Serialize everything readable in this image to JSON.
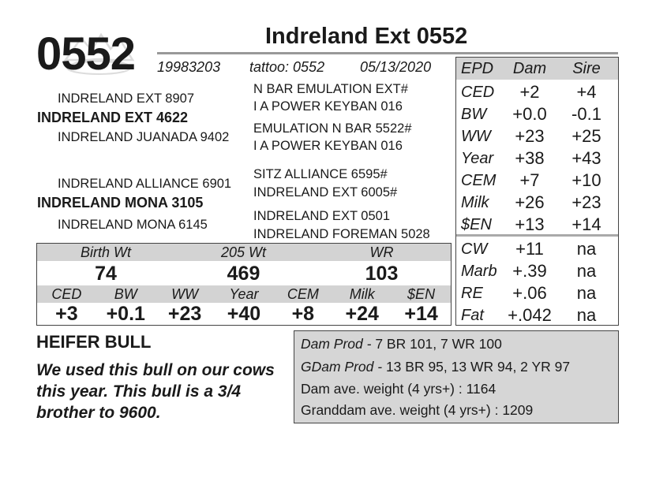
{
  "lot_number": "0552",
  "animal_name": "Indreland Ext 0552",
  "registration": "19983203",
  "tattoo": "tattoo: 0552",
  "birth_date": "05/13/2020",
  "pedigree": {
    "sire": "INDRELAND EXT 4622",
    "sire_sire": "INDRELAND EXT 8907",
    "sire_dam": "INDRELAND JUANADA 9402",
    "sire_sire_sire": "N BAR EMULATION EXT#",
    "sire_sire_dam": "I A POWER KEYBAN 016",
    "sire_dam_sire": "EMULATION N BAR 5522#",
    "sire_dam_dam": "I A POWER KEYBAN 016",
    "dam": "INDRELAND MONA 3105",
    "dam_sire": "INDRELAND ALLIANCE 6901",
    "dam_dam": "INDRELAND MONA 6145",
    "dam_sire_sire": "SITZ ALLIANCE 6595#",
    "dam_sire_dam": "INDRELAND EXT 6005#",
    "dam_dam_sire": "INDRELAND EXT 0501",
    "dam_dam_dam": "INDRELAND FOREMAN 5028"
  },
  "epd_table": {
    "headers": {
      "label": "EPD",
      "dam": "Dam",
      "sire": "Sire"
    },
    "rows": [
      {
        "label": "CED",
        "dam": "+2",
        "sire": "+4"
      },
      {
        "label": "BW",
        "dam": "+0.0",
        "sire": "-0.1"
      },
      {
        "label": "WW",
        "dam": "+23",
        "sire": "+25"
      },
      {
        "label": "Year",
        "dam": "+38",
        "sire": "+43"
      },
      {
        "label": "CEM",
        "dam": "+7",
        "sire": "+10"
      },
      {
        "label": "Milk",
        "dam": "+26",
        "sire": "+23"
      },
      {
        "label": "$EN",
        "dam": "+13",
        "sire": "+14"
      },
      {
        "label": "CW",
        "dam": "+11",
        "sire": "na"
      },
      {
        "label": "Marb",
        "dam": "+.39",
        "sire": "na"
      },
      {
        "label": "RE",
        "dam": "+.06",
        "sire": "na"
      },
      {
        "label": "Fat",
        "dam": "+.042",
        "sire": "na"
      }
    ]
  },
  "weights": {
    "labels": [
      "Birth Wt",
      "205 Wt",
      "WR"
    ],
    "values": [
      "74",
      "469",
      "103"
    ]
  },
  "own_epds": {
    "labels": [
      "CED",
      "BW",
      "WW",
      "Year",
      "CEM",
      "Milk",
      "$EN"
    ],
    "values": [
      "+3",
      "+0.1",
      "+23",
      "+40",
      "+8",
      "+24",
      "+14"
    ]
  },
  "category": "HEIFER BULL",
  "comment": "We used this bull on our cows this year. This bull is a 3/4 brother to 9600.",
  "production": {
    "dam_prod_label": "Dam Prod - ",
    "dam_prod_value": "7 BR 101, 7 WR 100",
    "gdam_prod_label": "GDam Prod - ",
    "gdam_prod_value": "13 BR 95, 13 WR 94, 2 YR 97",
    "dam_weight": "Dam ave. weight (4 yrs+) : 1164",
    "granddam_weight": "Granddam ave. weight (4 yrs+) : 1209"
  }
}
